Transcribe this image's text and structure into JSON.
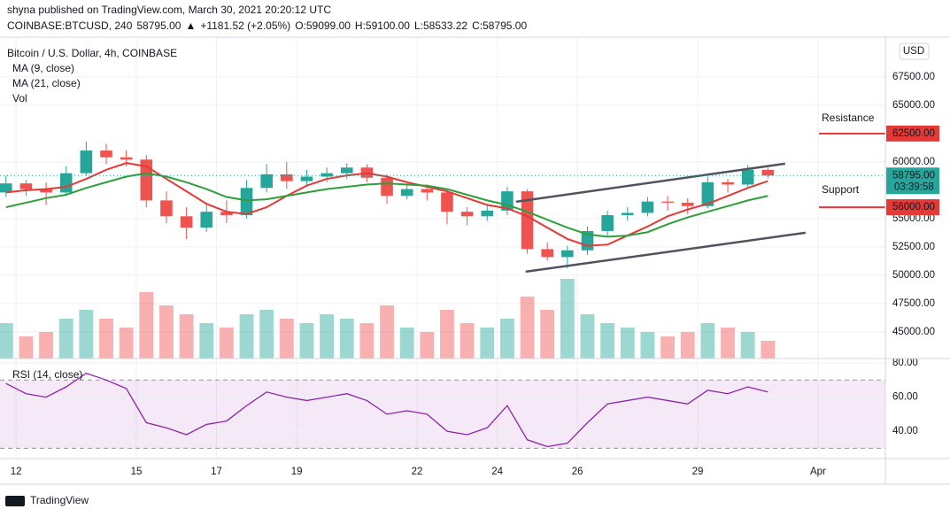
{
  "header": {
    "published": "shyna published on TradingView.com, March 30, 2021 20:20:12 UTC",
    "symbol": "COINBASE:BTCUSD, 240",
    "price": "58795.00",
    "arrow": "▲",
    "change": "+1181.52 (+2.05%)",
    "ohlc": [
      {
        "k": "O:",
        "v": "59099.00"
      },
      {
        "k": "H:",
        "v": "59100.00"
      },
      {
        "k": "L:",
        "v": "58533.22"
      },
      {
        "k": "C:",
        "v": "58795.00"
      }
    ]
  },
  "chart_data": {
    "type": "candlestick",
    "title": "Bitcoin / U.S. Dollar, 4h, COINBASE",
    "currency": "USD",
    "up_color": "#26a69a",
    "down_color": "#ef5350",
    "x": [
      11.75,
      12.25,
      12.75,
      13.25,
      13.75,
      14.25,
      14.75,
      15.25,
      15.75,
      16.25,
      16.75,
      17.25,
      17.75,
      18.25,
      18.75,
      19.25,
      19.75,
      20.25,
      20.75,
      21.25,
      21.75,
      22.25,
      22.75,
      23.25,
      23.75,
      24.25,
      24.75,
      25.25,
      25.75,
      26.25,
      26.75,
      27.25,
      27.75,
      28.25,
      28.75,
      29.25,
      29.75,
      30.25,
      30.75
    ],
    "open": [
      57300,
      58100,
      57600,
      57300,
      59000,
      61000,
      60400,
      60200,
      56600,
      55200,
      54200,
      55600,
      55300,
      57700,
      58900,
      58300,
      58700,
      59000,
      59500,
      58600,
      57000,
      57600,
      57300,
      55600,
      55200,
      55700,
      57400,
      52300,
      51600,
      52200,
      53900,
      55300,
      55500,
      56500,
      56400,
      56100,
      58200,
      58000,
      59300
    ],
    "high": [
      58800,
      58400,
      58200,
      59600,
      61800,
      61600,
      61000,
      60600,
      57400,
      56000,
      56400,
      56600,
      58400,
      59800,
      60000,
      59300,
      59500,
      59900,
      59800,
      58900,
      58100,
      58000,
      57600,
      56000,
      56300,
      57800,
      57600,
      52900,
      52600,
      54300,
      55700,
      56000,
      56900,
      57000,
      56800,
      58700,
      58500,
      59700,
      59500
    ],
    "low": [
      56900,
      57000,
      56200,
      57100,
      58800,
      59800,
      59600,
      56000,
      54600,
      53200,
      53800,
      54600,
      55000,
      57300,
      57600,
      57900,
      58200,
      58500,
      58200,
      56300,
      56700,
      56600,
      54500,
      54400,
      54800,
      55300,
      51900,
      51300,
      50600,
      51800,
      53500,
      54800,
      55200,
      55700,
      55400,
      55900,
      57300,
      57800,
      58533
    ],
    "close": [
      58100,
      57600,
      57300,
      59000,
      61000,
      60400,
      60200,
      56600,
      55200,
      54200,
      55600,
      55300,
      57700,
      58900,
      58300,
      58700,
      59000,
      59500,
      58600,
      57000,
      57600,
      57300,
      55600,
      55200,
      55700,
      57400,
      52300,
      51600,
      52200,
      53900,
      55300,
      55500,
      56500,
      56400,
      56100,
      58200,
      58000,
      59300,
      58795
    ],
    "series": [
      {
        "name": "MA (9, close)",
        "color": "#e53935",
        "values": [
          57300,
          57500,
          57600,
          57800,
          58500,
          59300,
          59900,
          59600,
          58500,
          57400,
          56300,
          55600,
          55400,
          56000,
          57000,
          57900,
          58500,
          58800,
          59000,
          58700,
          58200,
          57800,
          57400,
          56800,
          56200,
          55900,
          55200,
          54200,
          53200,
          52600,
          52700,
          53500,
          54300,
          55200,
          55800,
          56300,
          57000,
          57700,
          58300
        ]
      },
      {
        "name": "MA (21, close)",
        "color": "#2e9f3a",
        "values": [
          56000,
          56400,
          56800,
          57100,
          57700,
          58200,
          58700,
          59000,
          58700,
          58200,
          57600,
          56900,
          56600,
          56700,
          57000,
          57300,
          57600,
          57800,
          58000,
          58100,
          58000,
          57900,
          57600,
          57100,
          56600,
          56200,
          55600,
          54900,
          54200,
          53600,
          53400,
          53500,
          53800,
          54500,
          55100,
          55600,
          56100,
          56600,
          57000
        ]
      }
    ],
    "volume": {
      "name": "Vol",
      "values": [
        40,
        25,
        30,
        45,
        55,
        45,
        35,
        75,
        60,
        50,
        40,
        35,
        50,
        55,
        45,
        40,
        50,
        45,
        40,
        60,
        35,
        30,
        55,
        40,
        35,
        45,
        70,
        55,
        90,
        50,
        40,
        35,
        30,
        25,
        30,
        40,
        35,
        30,
        20
      ]
    },
    "xlim": [
      11.6,
      33.68
    ],
    "xticks": [
      12,
      15,
      17,
      19,
      22,
      24,
      26,
      29,
      {
        "value": 32,
        "label": "Apr"
      }
    ],
    "ylim": [
      42650,
      71000
    ],
    "yticks": [
      {
        "value": 45000,
        "label": "45000.00"
      },
      {
        "value": 47500,
        "label": "47500.00"
      },
      {
        "value": 50000,
        "label": "50000.00"
      },
      {
        "value": 52500,
        "label": "52500.00"
      },
      {
        "value": 55000,
        "label": "55000.00"
      },
      {
        "value": 60000,
        "label": "60000.00"
      },
      {
        "value": 65000,
        "label": "65000.00"
      },
      {
        "value": 67500,
        "label": "67500.00"
      }
    ],
    "grid": true,
    "trendlines": [
      {
        "x": [
          24.47,
          31.18
        ],
        "y": [
          56484,
          59844
        ],
        "color": "#50535e"
      },
      {
        "x": [
          24.71,
          31.69
        ],
        "y": [
          50312,
          53750
        ],
        "color": "#50535e"
      }
    ],
    "annotations": [
      {
        "text": "Resistance",
        "value": 62500,
        "label": "62500.00",
        "text_color": "#e53935",
        "line_color": "#e53935"
      },
      {
        "text": "Support",
        "value": 56000,
        "label": "56000.00",
        "text_color": "#2e9f3a",
        "line_color": "#e53935"
      }
    ],
    "last": {
      "value": 58795,
      "label": "58795.00",
      "countdown": "03:39:58",
      "color": "#26a69a"
    },
    "rsi": {
      "name": "RSI (14, close)",
      "color": "#8e24aa",
      "band": [
        30,
        70
      ],
      "ylim": [
        24,
        82.6
      ],
      "yticks": [
        {
          "value": 40,
          "label": "40.00"
        },
        {
          "value": 60,
          "label": "60.00"
        },
        {
          "value": 80,
          "label": "80.00"
        }
      ],
      "values": [
        68,
        62,
        60,
        66,
        74,
        70,
        65,
        45,
        42,
        38,
        44,
        46,
        55,
        63,
        60,
        58,
        60,
        62,
        58,
        50,
        52,
        50,
        40,
        38,
        42,
        55,
        35,
        31,
        33,
        45,
        56,
        58,
        60,
        58,
        56,
        64,
        62,
        66,
        63
      ]
    }
  },
  "footer": {
    "brand": "TradingView"
  }
}
